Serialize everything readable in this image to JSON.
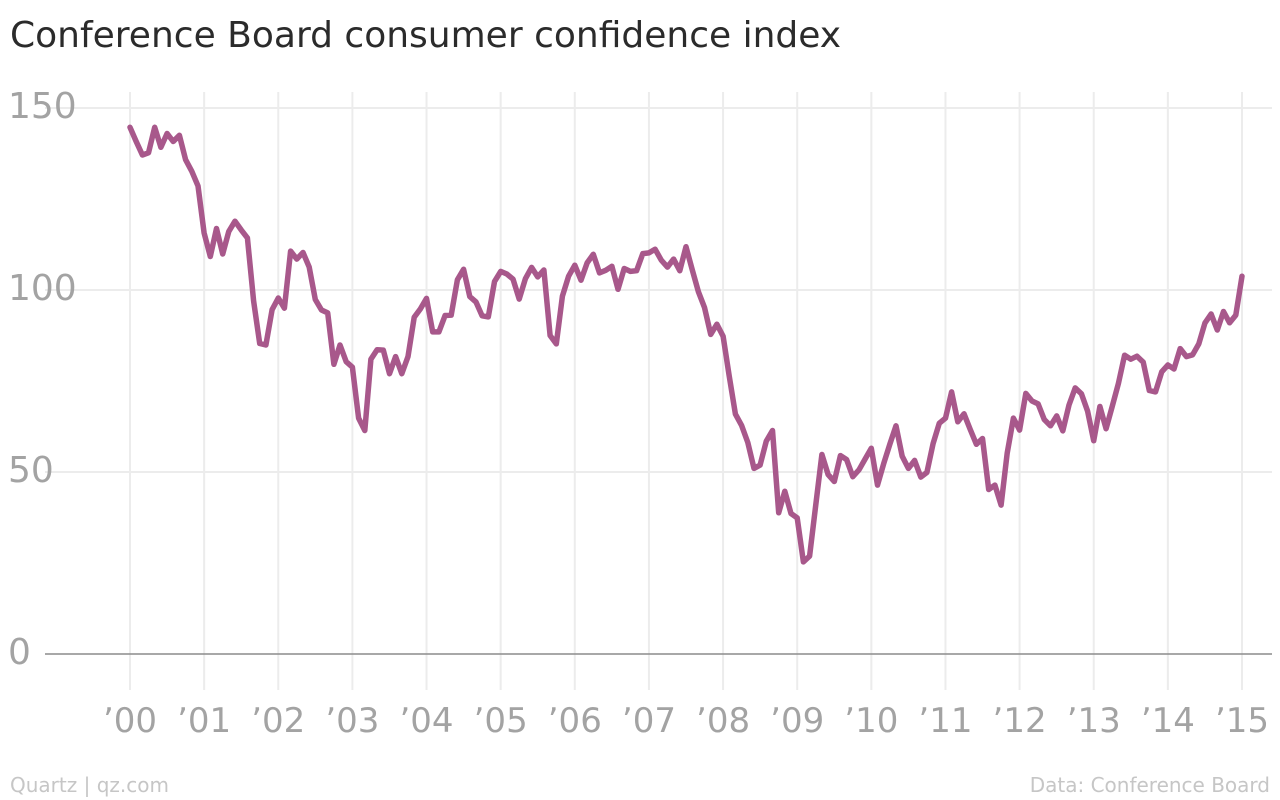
{
  "chart_data": {
    "type": "line",
    "title": "Conference Board consumer confidence index",
    "xlabel": "",
    "ylabel": "",
    "x_range": [
      "2000-01",
      "2015-02"
    ],
    "ylim": [
      0,
      150
    ],
    "y_ticks": [
      0,
      50,
      100,
      150
    ],
    "y_tick_labels": [
      "0",
      "50",
      "100",
      "150"
    ],
    "x_ticks": [
      "2000-01",
      "2001-01",
      "2002-01",
      "2003-01",
      "2004-01",
      "2005-01",
      "2006-01",
      "2007-01",
      "2008-01",
      "2009-01",
      "2010-01",
      "2011-01",
      "2012-01",
      "2013-01",
      "2014-01",
      "2015-01"
    ],
    "x_tick_labels": [
      "’00",
      "’01",
      "’02",
      "’03",
      "’04",
      "’05",
      "’06",
      "’07",
      "’08",
      "’09",
      "’10",
      "’11",
      "’12",
      "’13",
      "’14",
      "’15"
    ],
    "grid": true,
    "legend": "none",
    "series": [
      {
        "color": "#a8588b",
        "points": [
          [
            "2000-01",
            144.7
          ],
          [
            "2000-02",
            140.8
          ],
          [
            "2000-03",
            137.1
          ],
          [
            "2000-04",
            137.7
          ],
          [
            "2000-05",
            144.7
          ],
          [
            "2000-06",
            139.2
          ],
          [
            "2000-07",
            143.0
          ],
          [
            "2000-08",
            140.8
          ],
          [
            "2000-09",
            142.5
          ],
          [
            "2000-10",
            135.8
          ],
          [
            "2000-11",
            132.6
          ],
          [
            "2000-12",
            128.6
          ],
          [
            "2001-01",
            115.7
          ],
          [
            "2001-02",
            109.2
          ],
          [
            "2001-03",
            116.9
          ],
          [
            "2001-04",
            109.9
          ],
          [
            "2001-05",
            116.1
          ],
          [
            "2001-06",
            118.9
          ],
          [
            "2001-07",
            116.5
          ],
          [
            "2001-08",
            114.3
          ],
          [
            "2001-09",
            97.0
          ],
          [
            "2001-10",
            85.3
          ],
          [
            "2001-11",
            84.9
          ],
          [
            "2001-12",
            94.6
          ],
          [
            "2002-01",
            97.8
          ],
          [
            "2002-02",
            95.0
          ],
          [
            "2002-03",
            110.7
          ],
          [
            "2002-04",
            108.5
          ],
          [
            "2002-05",
            110.3
          ],
          [
            "2002-06",
            106.3
          ],
          [
            "2002-07",
            97.4
          ],
          [
            "2002-08",
            94.5
          ],
          [
            "2002-09",
            93.7
          ],
          [
            "2002-10",
            79.6
          ],
          [
            "2002-11",
            84.9
          ],
          [
            "2002-12",
            80.3
          ],
          [
            "2003-01",
            78.8
          ],
          [
            "2003-02",
            64.8
          ],
          [
            "2003-03",
            61.4
          ],
          [
            "2003-04",
            81.0
          ],
          [
            "2003-05",
            83.6
          ],
          [
            "2003-06",
            83.5
          ],
          [
            "2003-07",
            77.0
          ],
          [
            "2003-08",
            81.7
          ],
          [
            "2003-09",
            77.0
          ],
          [
            "2003-10",
            81.7
          ],
          [
            "2003-11",
            92.5
          ],
          [
            "2003-12",
            94.8
          ],
          [
            "2004-01",
            97.7
          ],
          [
            "2004-02",
            88.5
          ],
          [
            "2004-03",
            88.5
          ],
          [
            "2004-04",
            93.0
          ],
          [
            "2004-05",
            93.1
          ],
          [
            "2004-06",
            102.8
          ],
          [
            "2004-07",
            105.7
          ],
          [
            "2004-08",
            98.2
          ],
          [
            "2004-09",
            96.7
          ],
          [
            "2004-10",
            92.9
          ],
          [
            "2004-11",
            92.6
          ],
          [
            "2004-12",
            102.3
          ],
          [
            "2005-01",
            105.1
          ],
          [
            "2005-02",
            104.4
          ],
          [
            "2005-03",
            103.0
          ],
          [
            "2005-04",
            97.5
          ],
          [
            "2005-05",
            103.1
          ],
          [
            "2005-06",
            106.2
          ],
          [
            "2005-07",
            103.6
          ],
          [
            "2005-08",
            105.5
          ],
          [
            "2005-09",
            87.5
          ],
          [
            "2005-10",
            85.2
          ],
          [
            "2005-11",
            98.3
          ],
          [
            "2005-12",
            103.8
          ],
          [
            "2006-01",
            106.8
          ],
          [
            "2006-02",
            102.7
          ],
          [
            "2006-03",
            107.5
          ],
          [
            "2006-04",
            109.8
          ],
          [
            "2006-05",
            104.7
          ],
          [
            "2006-06",
            105.4
          ],
          [
            "2006-07",
            106.5
          ],
          [
            "2006-08",
            100.2
          ],
          [
            "2006-09",
            105.9
          ],
          [
            "2006-10",
            105.1
          ],
          [
            "2006-11",
            105.3
          ],
          [
            "2006-12",
            110.0
          ],
          [
            "2007-01",
            110.2
          ],
          [
            "2007-02",
            111.2
          ],
          [
            "2007-03",
            108.2
          ],
          [
            "2007-04",
            106.3
          ],
          [
            "2007-05",
            108.5
          ],
          [
            "2007-06",
            105.3
          ],
          [
            "2007-07",
            111.9
          ],
          [
            "2007-08",
            105.6
          ],
          [
            "2007-09",
            99.5
          ],
          [
            "2007-10",
            95.2
          ],
          [
            "2007-11",
            87.8
          ],
          [
            "2007-12",
            90.6
          ],
          [
            "2008-01",
            87.3
          ],
          [
            "2008-02",
            76.4
          ],
          [
            "2008-03",
            65.9
          ],
          [
            "2008-04",
            62.8
          ],
          [
            "2008-05",
            58.1
          ],
          [
            "2008-06",
            51.0
          ],
          [
            "2008-07",
            51.9
          ],
          [
            "2008-08",
            58.5
          ],
          [
            "2008-09",
            61.4
          ],
          [
            "2008-10",
            38.8
          ],
          [
            "2008-11",
            44.7
          ],
          [
            "2008-12",
            38.6
          ],
          [
            "2009-01",
            37.4
          ],
          [
            "2009-02",
            25.3
          ],
          [
            "2009-03",
            26.9
          ],
          [
            "2009-04",
            40.8
          ],
          [
            "2009-05",
            54.8
          ],
          [
            "2009-06",
            49.3
          ],
          [
            "2009-07",
            47.4
          ],
          [
            "2009-08",
            54.5
          ],
          [
            "2009-09",
            53.4
          ],
          [
            "2009-10",
            48.7
          ],
          [
            "2009-11",
            50.6
          ],
          [
            "2009-12",
            53.6
          ],
          [
            "2010-01",
            56.5
          ],
          [
            "2010-02",
            46.4
          ],
          [
            "2010-03",
            52.3
          ],
          [
            "2010-04",
            57.7
          ],
          [
            "2010-05",
            62.7
          ],
          [
            "2010-06",
            54.3
          ],
          [
            "2010-07",
            51.0
          ],
          [
            "2010-08",
            53.2
          ],
          [
            "2010-09",
            48.6
          ],
          [
            "2010-10",
            49.9
          ],
          [
            "2010-11",
            57.8
          ],
          [
            "2010-12",
            63.4
          ],
          [
            "2011-01",
            64.8
          ],
          [
            "2011-02",
            72.0
          ],
          [
            "2011-03",
            63.8
          ],
          [
            "2011-04",
            66.0
          ],
          [
            "2011-05",
            61.7
          ],
          [
            "2011-06",
            57.6
          ],
          [
            "2011-07",
            59.2
          ],
          [
            "2011-08",
            45.2
          ],
          [
            "2011-09",
            46.4
          ],
          [
            "2011-10",
            40.9
          ],
          [
            "2011-11",
            55.2
          ],
          [
            "2011-12",
            64.8
          ],
          [
            "2012-01",
            61.5
          ],
          [
            "2012-02",
            71.6
          ],
          [
            "2012-03",
            69.5
          ],
          [
            "2012-04",
            68.7
          ],
          [
            "2012-05",
            64.4
          ],
          [
            "2012-06",
            62.7
          ],
          [
            "2012-07",
            65.4
          ],
          [
            "2012-08",
            61.3
          ],
          [
            "2012-09",
            68.4
          ],
          [
            "2012-10",
            73.1
          ],
          [
            "2012-11",
            71.5
          ],
          [
            "2012-12",
            66.7
          ],
          [
            "2013-01",
            58.6
          ],
          [
            "2013-02",
            68.0
          ],
          [
            "2013-03",
            61.9
          ],
          [
            "2013-04",
            68.1
          ],
          [
            "2013-05",
            74.3
          ],
          [
            "2013-06",
            82.1
          ],
          [
            "2013-07",
            81.0
          ],
          [
            "2013-08",
            81.8
          ],
          [
            "2013-09",
            80.2
          ],
          [
            "2013-10",
            72.4
          ],
          [
            "2013-11",
            72.0
          ],
          [
            "2013-12",
            77.5
          ],
          [
            "2014-01",
            79.4
          ],
          [
            "2014-02",
            78.3
          ],
          [
            "2014-03",
            83.9
          ],
          [
            "2014-04",
            81.7
          ],
          [
            "2014-05",
            82.2
          ],
          [
            "2014-06",
            85.2
          ],
          [
            "2014-07",
            90.9
          ],
          [
            "2014-08",
            93.4
          ],
          [
            "2014-09",
            89.0
          ],
          [
            "2014-10",
            94.1
          ],
          [
            "2014-11",
            91.0
          ],
          [
            "2014-12",
            93.1
          ],
          [
            "2015-01",
            103.8
          ]
        ]
      }
    ]
  },
  "footer": {
    "left": "Quartz | qz.com",
    "right": "Data: Conference Board"
  }
}
